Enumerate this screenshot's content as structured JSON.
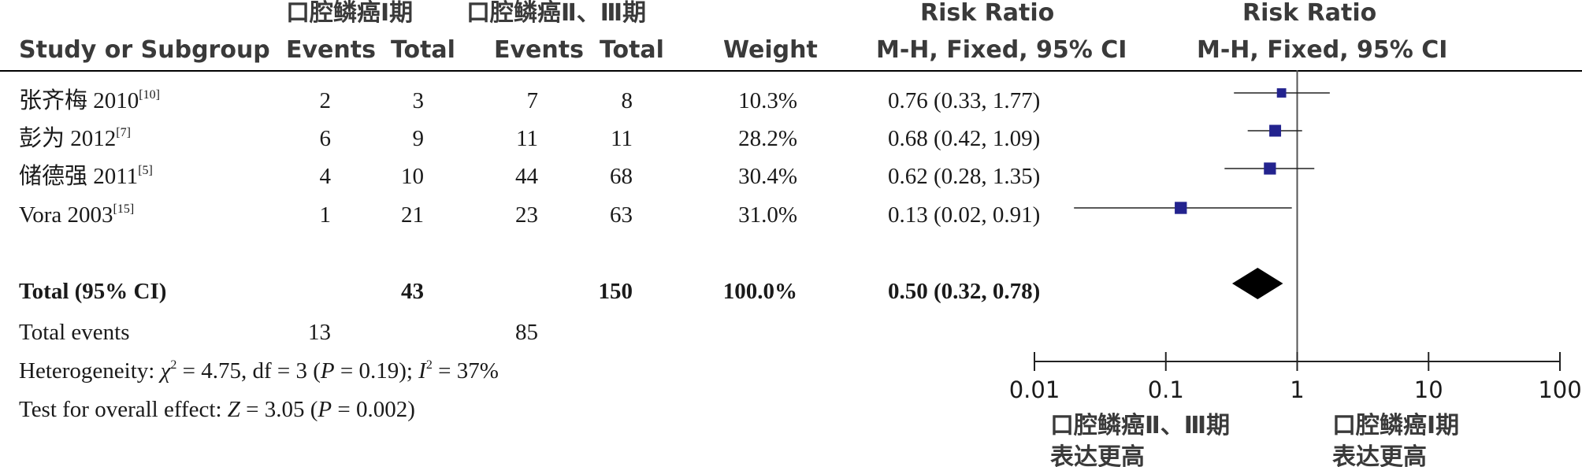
{
  "header": {
    "group1": "口腔鳞癌Ⅰ期",
    "group2": "口腔鳞癌Ⅱ、Ⅲ期",
    "rr_title_left": "Risk Ratio",
    "rr_title_right": "Risk Ratio",
    "study_col": "Study or Subgroup",
    "events1": "Events",
    "total1": "Total",
    "events2": "Events",
    "total2": "Total",
    "weight": "Weight",
    "method_left": "M-H, Fixed, 95% CI",
    "method_right": "M-H, Fixed, 95% CI"
  },
  "studies": [
    {
      "name": "张齐梅 2010",
      "ref": "[10]",
      "events1": "2",
      "total1": "3",
      "events2": "7",
      "total2": "8",
      "weight": "10.3%",
      "ci_text": "0.76 (0.33, 1.77)"
    },
    {
      "name": "彭为 2012",
      "ref": "[7]",
      "events1": "6",
      "total1": "9",
      "events2": "11",
      "total2": "11",
      "weight": "28.2%",
      "ci_text": "0.68 (0.42, 1.09)"
    },
    {
      "name": "储德强 2011",
      "ref": "[5]",
      "events1": "4",
      "total1": "10",
      "events2": "44",
      "total2": "68",
      "weight": "30.4%",
      "ci_text": "0.62 (0.28, 1.35)"
    },
    {
      "name": "Vora 2003",
      "ref": "[15]",
      "events1": "1",
      "total1": "21",
      "events2": "23",
      "total2": "63",
      "weight": "31.0%",
      "ci_text": "0.13 (0.02, 0.91)"
    }
  ],
  "total": {
    "label": "Total (95% CI)",
    "total1": "43",
    "total2": "150",
    "weight": "100.0%",
    "ci_text": "0.50 (0.32, 0.78)"
  },
  "total_events": {
    "label": "Total events",
    "events1": "13",
    "events2": "85"
  },
  "heterogeneity": {
    "prefix": "Heterogeneity: ",
    "chi": "χ",
    "chi_rest": " = 4.75, df = 3 (",
    "p": "P",
    "p_rest": " = 0.19); ",
    "i": "I",
    "i_rest": " = 37%"
  },
  "overall": {
    "prefix": "Test for overall effect: ",
    "z": "Z",
    "z_rest": " = 3.05 (",
    "p": "P",
    "p_rest": " = 0.002)"
  },
  "chart_data": {
    "type": "forest",
    "scale": "log",
    "xlim": [
      0.01,
      100
    ],
    "ticks": [
      0.01,
      0.1,
      1,
      10,
      100
    ],
    "tick_labels": [
      "0.01",
      "0.1",
      "1",
      "10",
      "100"
    ],
    "reference_line": 1,
    "marker_color": "#23238e",
    "points": [
      {
        "study": "张齐梅 2010",
        "rr": 0.76,
        "lower": 0.33,
        "upper": 1.77,
        "weight": 10.3
      },
      {
        "study": "彭为 2012",
        "rr": 0.68,
        "lower": 0.42,
        "upper": 1.09,
        "weight": 28.2
      },
      {
        "study": "储德强 2011",
        "rr": 0.62,
        "lower": 0.28,
        "upper": 1.35,
        "weight": 30.4
      },
      {
        "study": "Vora 2003",
        "rr": 0.13,
        "lower": 0.02,
        "upper": 0.91,
        "weight": 31.0
      }
    ],
    "overall": {
      "rr": 0.5,
      "lower": 0.32,
      "upper": 0.78
    },
    "favours_left": [
      "口腔鳞癌Ⅱ、Ⅲ期",
      "表达更高"
    ],
    "favours_right": [
      "口腔鳞癌Ⅰ期",
      "表达更高"
    ]
  }
}
